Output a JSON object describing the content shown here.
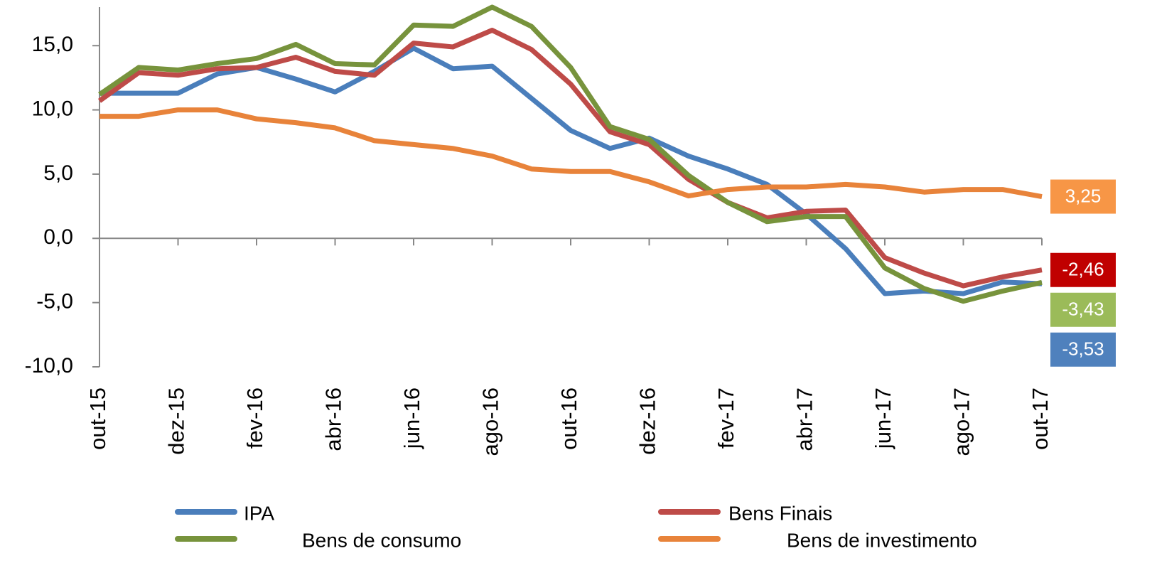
{
  "chart_data": {
    "type": "line",
    "categories": [
      "out-15",
      null,
      "dez-15",
      null,
      "fev-16",
      null,
      "abr-16",
      null,
      "jun-16",
      null,
      "ago-16",
      null,
      "out-16",
      null,
      "dez-16",
      null,
      "fev-17",
      null,
      "abr-17",
      null,
      "jun-17",
      null,
      "ago-17",
      null,
      "out-17"
    ],
    "ylim": [
      -10,
      18
    ],
    "yticks": [
      {
        "value": -10,
        "label": "-10,0"
      },
      {
        "value": -5,
        "label": "-5,0"
      },
      {
        "value": 0,
        "label": "0,0"
      },
      {
        "value": 5,
        "label": "5,0"
      },
      {
        "value": 10,
        "label": "10,0"
      },
      {
        "value": 15,
        "label": "15,0"
      }
    ],
    "series": [
      {
        "name": "IPA",
        "color": "#4a7ebb",
        "label_color": "#4f81bd",
        "end_label": "-3,53",
        "values": [
          11.3,
          11.3,
          11.3,
          12.8,
          13.3,
          12.4,
          11.4,
          13.0,
          14.8,
          13.2,
          13.4,
          10.9,
          8.4,
          7.0,
          7.8,
          6.4,
          5.4,
          4.2,
          1.9,
          -0.8,
          -4.3,
          -4.1,
          -4.3,
          -3.4,
          -3.53
        ]
      },
      {
        "name": "Bens Finais",
        "color": "#be4b48",
        "label_color": "#c00000",
        "end_label": "-2,46",
        "values": [
          10.7,
          12.9,
          12.7,
          13.2,
          13.3,
          14.1,
          13.0,
          12.7,
          15.2,
          14.9,
          16.2,
          14.7,
          12.0,
          8.3,
          7.3,
          4.6,
          2.8,
          1.6,
          2.1,
          2.2,
          -1.5,
          -2.7,
          -3.7,
          -3.0,
          -2.46
        ]
      },
      {
        "name": "Bens de consumo",
        "color": "#77933c",
        "label_color": "#9bbb59",
        "end_label": "-3,43",
        "values": [
          11.2,
          13.3,
          13.1,
          13.6,
          14.0,
          15.1,
          13.6,
          13.5,
          16.6,
          16.5,
          18.0,
          16.5,
          13.3,
          8.7,
          7.7,
          4.9,
          2.8,
          1.3,
          1.7,
          1.7,
          -2.3,
          -3.9,
          -4.9,
          -4.1,
          -3.43
        ]
      },
      {
        "name": "Bens de investimento",
        "color": "#e8833a",
        "label_color": "#f79646",
        "end_label": "3,25",
        "values": [
          9.5,
          9.5,
          10.0,
          10.0,
          9.3,
          9.0,
          8.6,
          7.6,
          7.3,
          7.0,
          6.4,
          5.4,
          5.2,
          5.2,
          4.4,
          3.3,
          3.8,
          4.0,
          4.0,
          4.2,
          4.0,
          3.6,
          3.8,
          3.8,
          3.25
        ]
      }
    ]
  }
}
